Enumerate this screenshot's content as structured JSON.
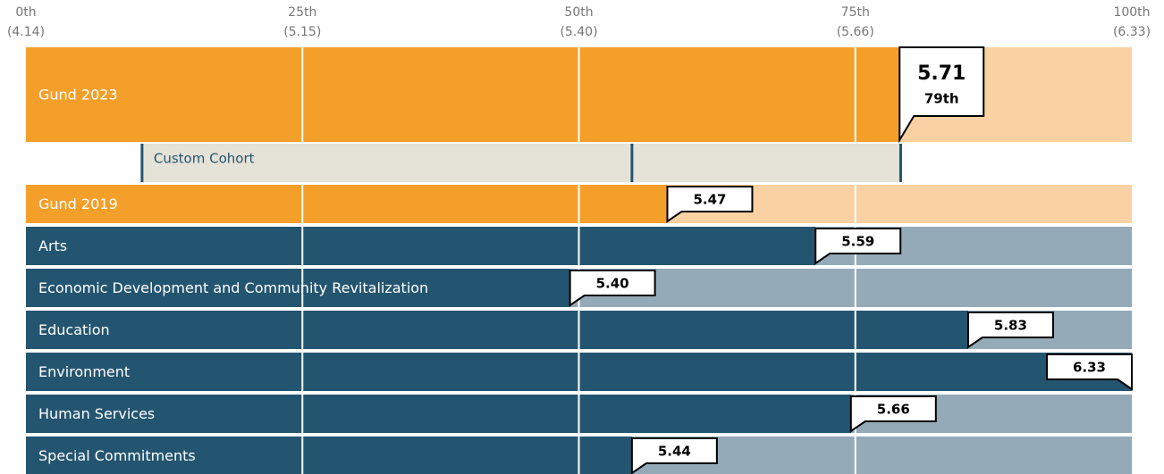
{
  "chart_data": {
    "type": "percentile-bar",
    "xlim": [
      0,
      100
    ],
    "xticks": [
      {
        "value": 0,
        "label": "0th"
      },
      {
        "value": 25,
        "label": "25th"
      },
      {
        "value": 50,
        "label": "50th"
      },
      {
        "value": 75,
        "label": "75th"
      },
      {
        "value": 100,
        "label": "100th"
      }
    ],
    "xtick_scores": [
      "(4.14)",
      "(5.15)",
      "(5.40)",
      "(5.66)",
      "(6.33)"
    ],
    "highlight": {
      "name": "Gund 2023",
      "percentile": 79,
      "percentile_label": "79th",
      "score": "5.71",
      "color": "#f59f2b",
      "light_color": "#f9d1a2"
    },
    "cohort": {
      "name": "Custom Cohort",
      "low": 10.5,
      "median": 54.8,
      "high": 79.1,
      "color": "#e5e2d8",
      "tick_color": "#245570"
    },
    "rows": [
      {
        "name": "Gund 2019",
        "percentile": 58,
        "score": "5.47",
        "color": "#f59f2b",
        "light_color": "#f9d1a2"
      },
      {
        "name": "Arts",
        "percentile": 71.4,
        "score": "5.59",
        "color": "#245570",
        "light_color": "#94aab8"
      },
      {
        "name": "Economic Development and Community Revitalization",
        "percentile": 49.2,
        "score": "5.40",
        "color": "#245570",
        "light_color": "#94aab8"
      },
      {
        "name": "Education",
        "percentile": 85.2,
        "score": "5.83",
        "color": "#245570",
        "light_color": "#94aab8"
      },
      {
        "name": "Environment",
        "percentile": 100,
        "score": "6.33",
        "color": "#245570",
        "light_color": "#94aab8"
      },
      {
        "name": "Human Services",
        "percentile": 74.6,
        "score": "5.66",
        "color": "#245570",
        "light_color": "#94aab8"
      },
      {
        "name": "Special Commitments",
        "percentile": 54.8,
        "score": "5.44",
        "color": "#245570",
        "light_color": "#94aab8"
      }
    ]
  }
}
